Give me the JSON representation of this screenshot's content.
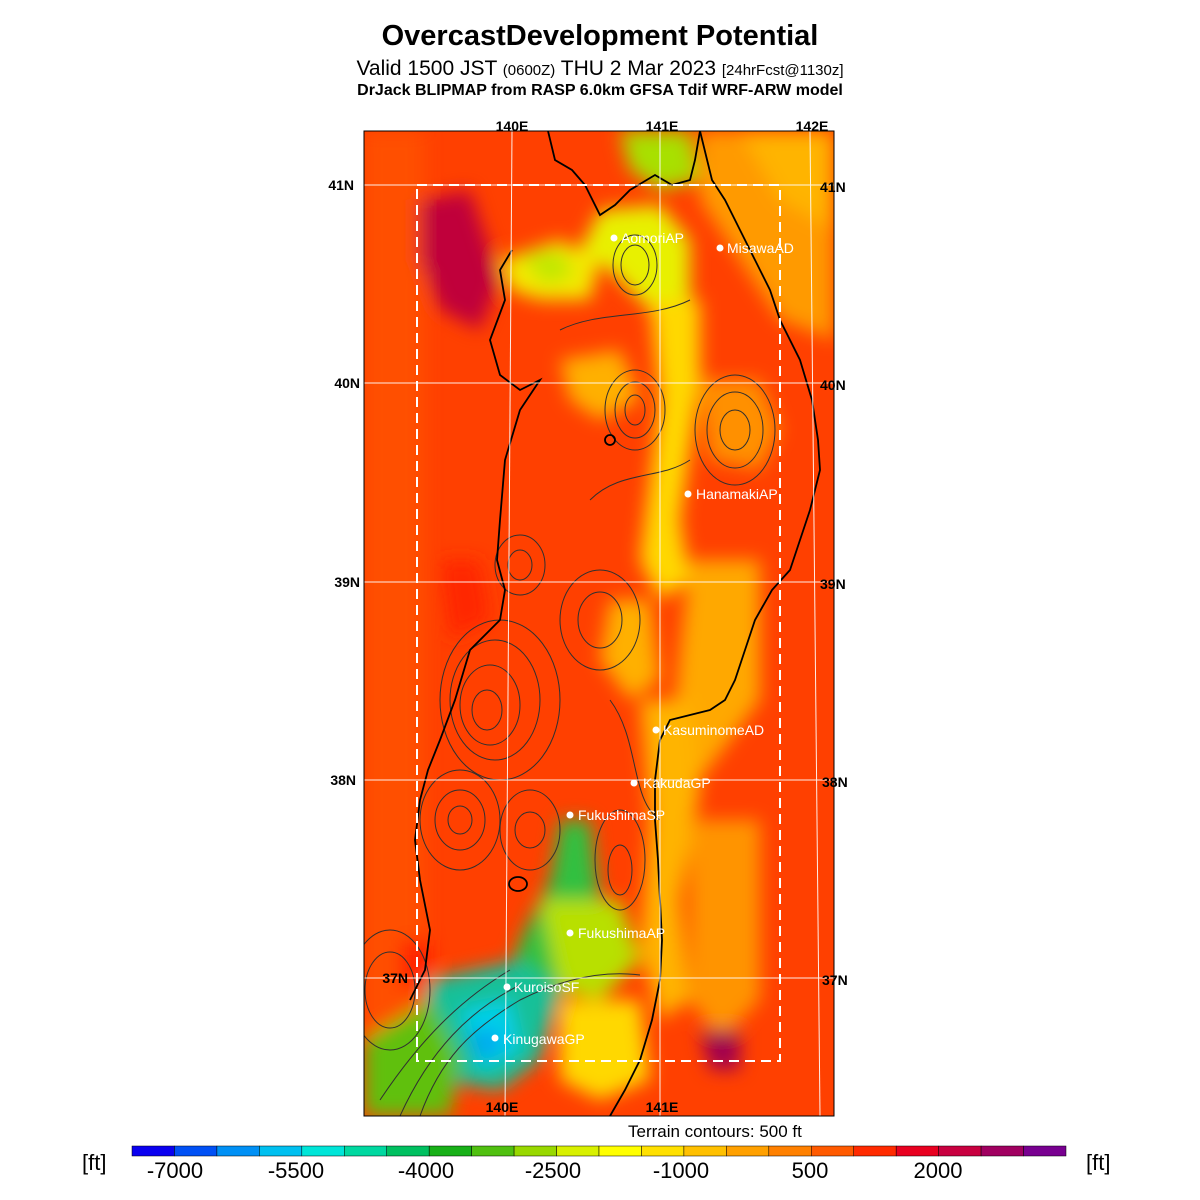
{
  "header": {
    "title": "OvercastDevelopment Potential",
    "valid_prefix": "Valid 1500 JST",
    "valid_zulu": "(0600Z)",
    "valid_date": "THU 2 Mar 2023",
    "forecast": "[24hrFcst@1130z]",
    "model": "DrJack BLIPMAP from RASP 6.0km GFSA Tdif WRF-ARW model"
  },
  "axes": {
    "top_lon": [
      "140E",
      "141E",
      "142E"
    ],
    "bottom_lon": [
      "140E",
      "141E"
    ],
    "left_lat": [
      "41N",
      "40N",
      "39N",
      "38N",
      "37N"
    ],
    "right_lat": [
      "41N",
      "40N",
      "39N",
      "38N",
      "37N"
    ]
  },
  "stations": [
    {
      "name": "AomoriAP"
    },
    {
      "name": "MisawaAD"
    },
    {
      "name": "HanamakiAP"
    },
    {
      "name": "KasuminomeAD"
    },
    {
      "name": "KakudaGP"
    },
    {
      "name": "FukushimaSP"
    },
    {
      "name": "FukushimaAP"
    },
    {
      "name": "KuroisoSF"
    },
    {
      "name": "KinugawaGP"
    }
  ],
  "contour_note": "Terrain contours: 500 ft",
  "colorbar": {
    "unit": "[ft]",
    "labels": [
      "-7000",
      "-5500",
      "-4000",
      "-2500",
      "-1000",
      "500",
      "2000"
    ],
    "colors": [
      "#0a00f0",
      "#0050f5",
      "#0090f5",
      "#00c0f0",
      "#00e5d8",
      "#00d8a0",
      "#00c060",
      "#18b018",
      "#50c010",
      "#98d800",
      "#d8f000",
      "#ffff00",
      "#ffe000",
      "#ffc000",
      "#ffa000",
      "#ff8000",
      "#ff5a00",
      "#ff2a00",
      "#e80020",
      "#c80040",
      "#a00060",
      "#780090"
    ]
  }
}
